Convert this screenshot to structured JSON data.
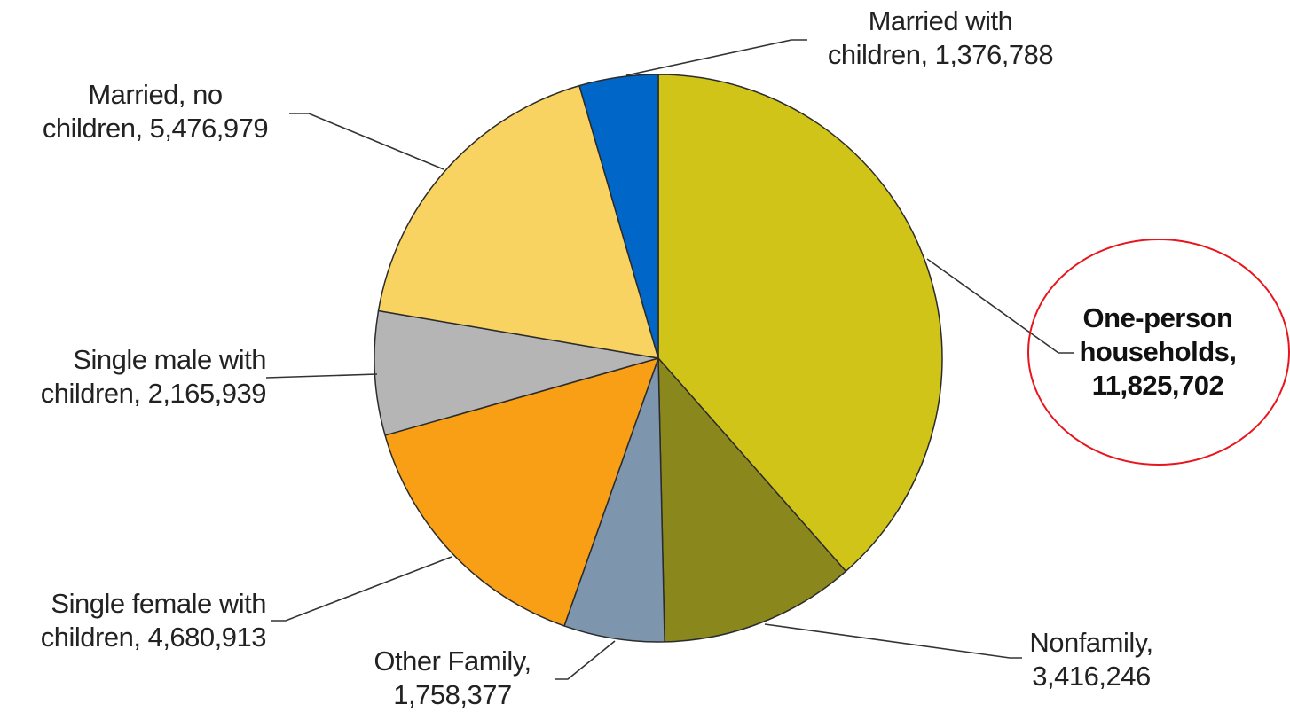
{
  "chart_data": {
    "type": "pie",
    "title": "",
    "start": "12 o'clock",
    "direction": "clockwise",
    "slices": [
      {
        "name": "One-person households",
        "value": 11825702,
        "color": "#d0c418",
        "label_lines": [
          "One-person",
          "households,",
          "11,825,702"
        ],
        "highlighted": true
      },
      {
        "name": "Nonfamily",
        "value": 3416246,
        "color": "#8a881c",
        "label_lines": [
          "Nonfamily,",
          "3,416,246"
        ]
      },
      {
        "name": "Other Family",
        "value": 1758377,
        "color": "#7e95ae",
        "label_lines": [
          "Other Family,",
          "1,758,377"
        ]
      },
      {
        "name": "Single female with children",
        "value": 4680913,
        "color": "#f99f16",
        "label_lines": [
          "Single female with",
          "children, 4,680,913"
        ]
      },
      {
        "name": "Single male with children",
        "value": 2165939,
        "color": "#b5b5b5",
        "label_lines": [
          "Single male with",
          "children, 2,165,939"
        ]
      },
      {
        "name": "Married, no children",
        "value": 5476979,
        "color": "#f8d362",
        "label_lines": [
          "Married, no",
          "children, 5,476,979"
        ]
      },
      {
        "name": "Married with children",
        "value": 1376788,
        "color": "#0067c9",
        "label_lines": [
          "Married with",
          "children, 1,376,788"
        ]
      }
    ],
    "highlight_color": "#e8161c"
  }
}
